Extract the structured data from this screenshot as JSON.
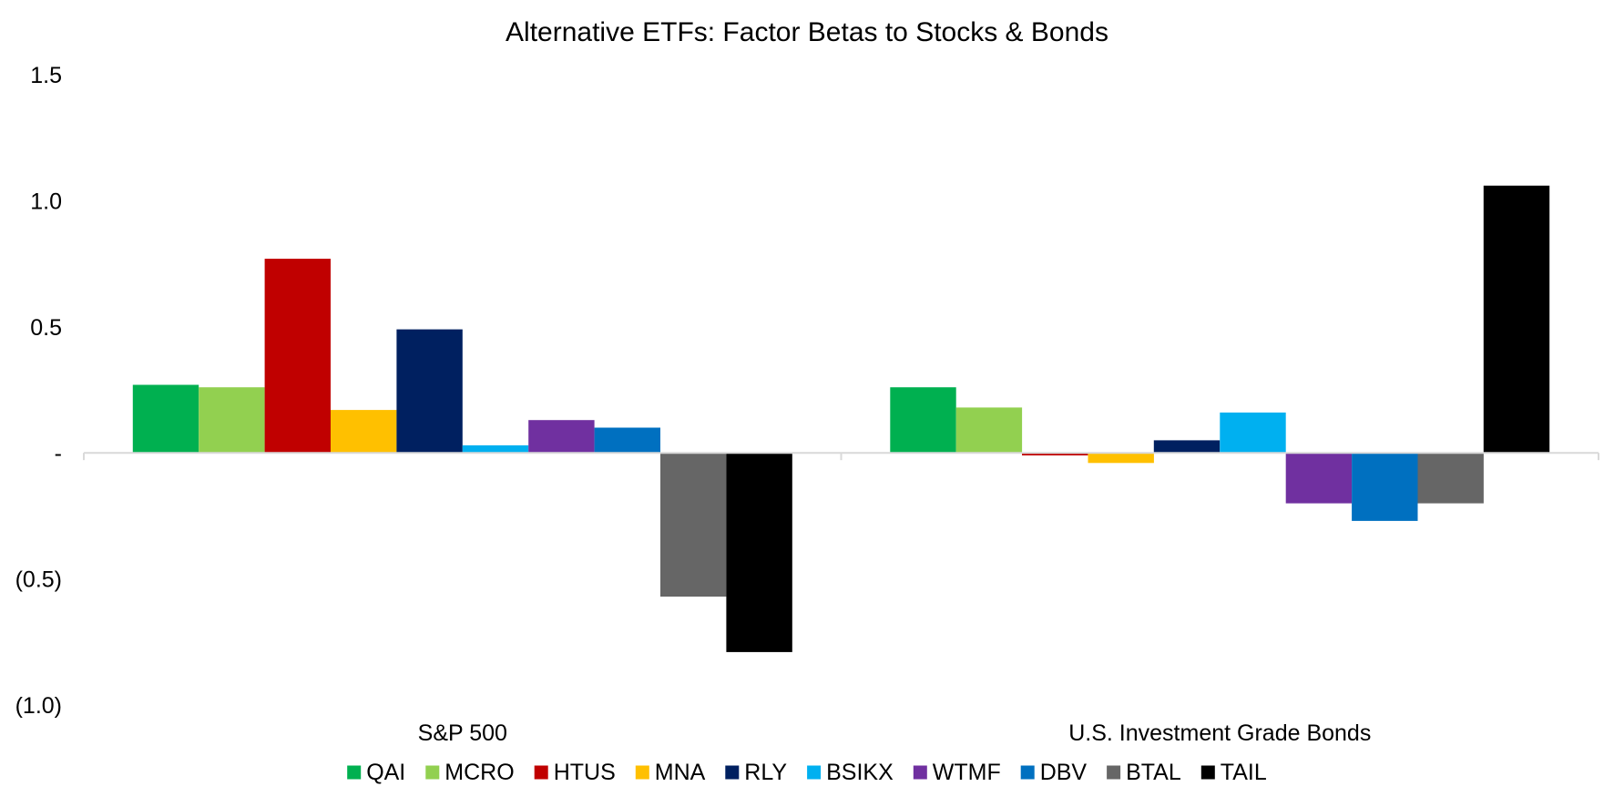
{
  "chart_data": {
    "type": "bar",
    "title": "Alternative ETFs: Factor Betas to Stocks & Bonds",
    "xlabel": "",
    "ylabel": "",
    "ylim": [
      -1.0,
      1.5
    ],
    "y_ticks": [
      {
        "value": 1.5,
        "label": "1.5"
      },
      {
        "value": 1.0,
        "label": "1.0"
      },
      {
        "value": 0.5,
        "label": "0.5"
      },
      {
        "value": 0.0,
        "label": "-"
      },
      {
        "value": -0.5,
        "label": "(0.5)"
      },
      {
        "value": -1.0,
        "label": "(1.0)"
      }
    ],
    "grid": false,
    "legend_position": "bottom",
    "categories": [
      "S&P 500",
      "U.S. Investment Grade Bonds"
    ],
    "series": [
      {
        "name": "QAI",
        "color": "#00B050",
        "values": [
          0.27,
          0.26
        ]
      },
      {
        "name": "MCRO",
        "color": "#92D050",
        "values": [
          0.26,
          0.18
        ]
      },
      {
        "name": "HTUS",
        "color": "#C00000",
        "values": [
          0.77,
          -0.01
        ]
      },
      {
        "name": "MNA",
        "color": "#FFC000",
        "values": [
          0.17,
          -0.04
        ]
      },
      {
        "name": "RLY",
        "color": "#002060",
        "values": [
          0.49,
          0.05
        ]
      },
      {
        "name": "BSIKX",
        "color": "#00B0F0",
        "values": [
          0.03,
          0.16
        ]
      },
      {
        "name": "WTMF",
        "color": "#7030A0",
        "values": [
          0.13,
          -0.2
        ]
      },
      {
        "name": "DBV",
        "color": "#0070C0",
        "values": [
          0.1,
          -0.27
        ]
      },
      {
        "name": "BTAL",
        "color": "#666666",
        "values": [
          -0.57,
          -0.2
        ]
      },
      {
        "name": "TAIL",
        "color": "#000000",
        "values": [
          -0.79,
          1.06
        ]
      }
    ],
    "axis_color": "#D9D9D9"
  }
}
